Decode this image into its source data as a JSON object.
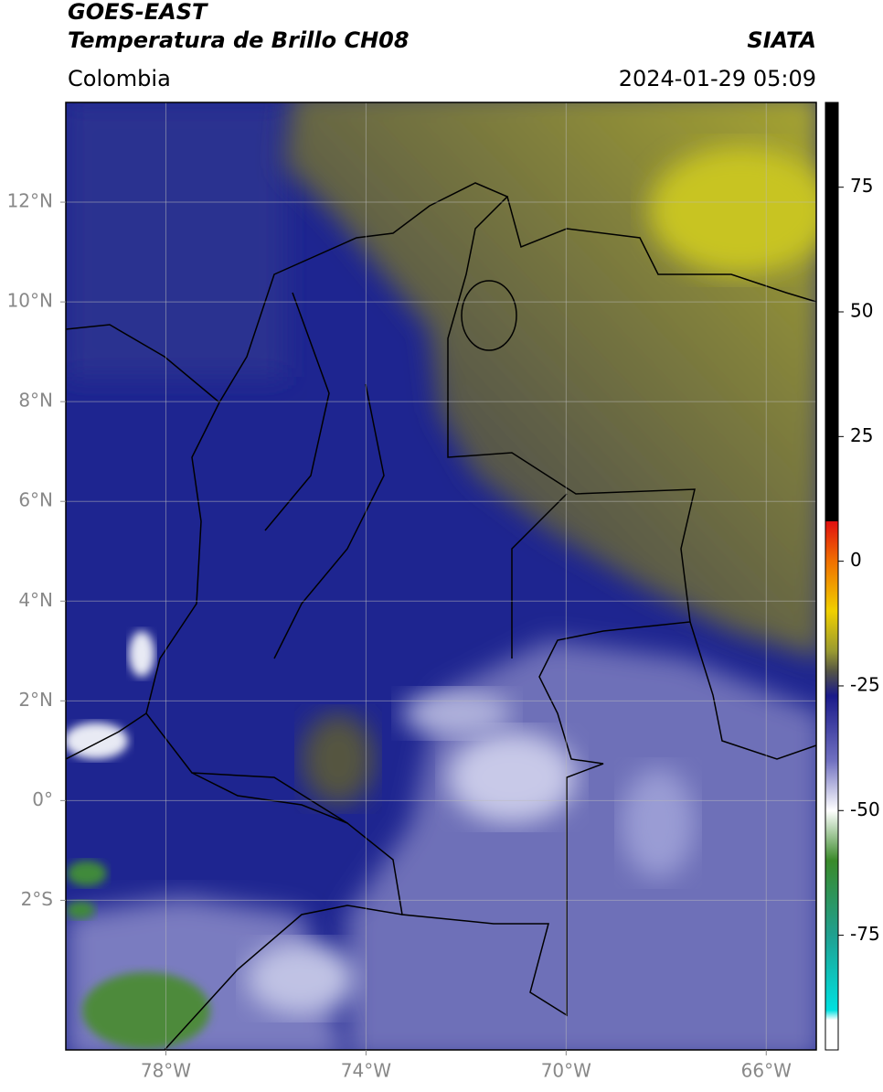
{
  "header": {
    "title": "GOES-EAST",
    "subtitle": "Temperatura de Brillo CH08",
    "source": "SIATA",
    "region": "Colombia",
    "datetime": "2024-01-29 05:09"
  },
  "map": {
    "xlim": [
      -80,
      -65
    ],
    "ylim": [
      -5,
      14
    ],
    "xticks": [
      {
        "value": -78,
        "label": "78°W"
      },
      {
        "value": -74,
        "label": "74°W"
      },
      {
        "value": -70,
        "label": "70°W"
      },
      {
        "value": -66,
        "label": "66°W"
      }
    ],
    "yticks": [
      {
        "value": 12,
        "label": "12°N"
      },
      {
        "value": 10,
        "label": "10°N"
      },
      {
        "value": 8,
        "label": "8°N"
      },
      {
        "value": 6,
        "label": "6°N"
      },
      {
        "value": 4,
        "label": "4°N"
      },
      {
        "value": 2,
        "label": "2°N"
      },
      {
        "value": 0,
        "label": "0°"
      },
      {
        "value": -2,
        "label": "2°S"
      }
    ],
    "grid": true
  },
  "colorbar": {
    "lim": [
      -98,
      92
    ],
    "ticks": [
      75,
      50,
      25,
      0,
      -25,
      -50,
      -75
    ],
    "stops": [
      {
        "value": 92,
        "color": "#000000"
      },
      {
        "value": 8,
        "color": "#000000"
      },
      {
        "value": 8,
        "color": "#e01010"
      },
      {
        "value": 0,
        "color": "#f07000"
      },
      {
        "value": -10,
        "color": "#f0d000"
      },
      {
        "value": -18,
        "color": "#9a9a30"
      },
      {
        "value": -22,
        "color": "#555545"
      },
      {
        "value": -27,
        "color": "#1a1a8a"
      },
      {
        "value": -40,
        "color": "#7070c0"
      },
      {
        "value": -50,
        "color": "#ffffff"
      },
      {
        "value": -60,
        "color": "#3a8a2a"
      },
      {
        "value": -75,
        "color": "#20a090"
      },
      {
        "value": -90,
        "color": "#00e0e0"
      },
      {
        "value": -92,
        "color": "#ffffff"
      },
      {
        "value": -98,
        "color": "#ffffff"
      }
    ]
  }
}
